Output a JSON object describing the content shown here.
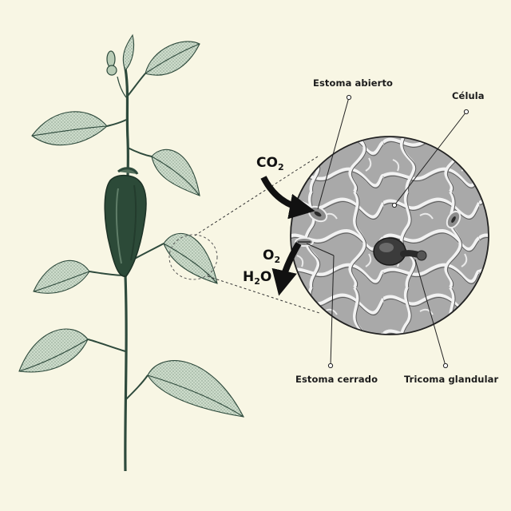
{
  "labels": {
    "open_stoma": "Estoma abierto",
    "cell": "Célula",
    "closed_stoma": "Estoma cerrado",
    "glandular_trichome": "Tricoma glandular"
  },
  "gases": {
    "co2": {
      "main": "CO",
      "sub": "2"
    },
    "o2": {
      "main": "O",
      "sub": "2"
    },
    "h2o": {
      "pre": "H",
      "sub": "2",
      "post": "O"
    }
  },
  "colors": {
    "background": "#f8f6e4",
    "leaf": "#c9d8c6",
    "leaf_ink": "#2e4a3c",
    "pepper": "#2c4a38",
    "micro_bg": "#a9a9a9",
    "micro_wall": "#ececec",
    "ink": "#111111"
  }
}
